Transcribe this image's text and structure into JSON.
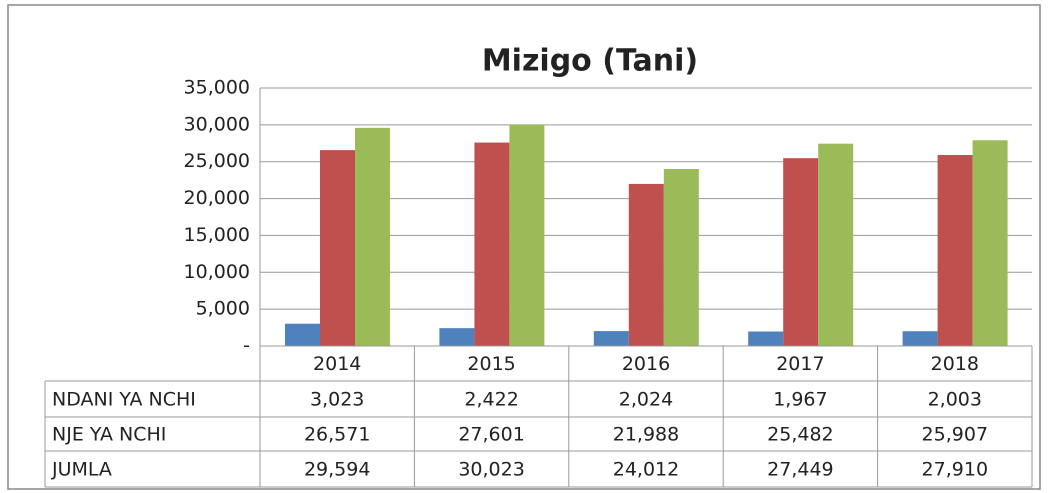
{
  "chart_data": {
    "type": "bar",
    "title": "Mizigo (Tani)",
    "categories": [
      "2014",
      "2015",
      "2016",
      "2017",
      "2018"
    ],
    "series": [
      {
        "name": "NDANI YA NCHI",
        "color": "#4f81bd",
        "values": [
          3023,
          2422,
          2024,
          1967,
          2003
        ],
        "value_labels": [
          "3,023",
          "2,422",
          "2,024",
          "1,967",
          "2,003"
        ]
      },
      {
        "name": "NJE YA NCHI",
        "color": "#c0504d",
        "values": [
          26571,
          27601,
          21988,
          25482,
          25907
        ],
        "value_labels": [
          "26,571",
          "27,601",
          "21,988",
          "25,482",
          "25,907"
        ]
      },
      {
        "name": "JUMLA",
        "color": "#9bbb59",
        "values": [
          29594,
          30023,
          24012,
          27449,
          27910
        ],
        "value_labels": [
          "29,594",
          "30,023",
          "24,012",
          "27,449",
          "27,910"
        ]
      }
    ],
    "ylim": [
      0,
      35000
    ],
    "yticks": [
      {
        "value": 0,
        "label": "-"
      },
      {
        "value": 5000,
        "label": "5,000"
      },
      {
        "value": 10000,
        "label": "10,000"
      },
      {
        "value": 15000,
        "label": "15,000"
      },
      {
        "value": 20000,
        "label": "20,000"
      },
      {
        "value": 25000,
        "label": "25,000"
      },
      {
        "value": 30000,
        "label": "30,000"
      },
      {
        "value": 35000,
        "label": "35,000"
      }
    ],
    "grid": true
  }
}
